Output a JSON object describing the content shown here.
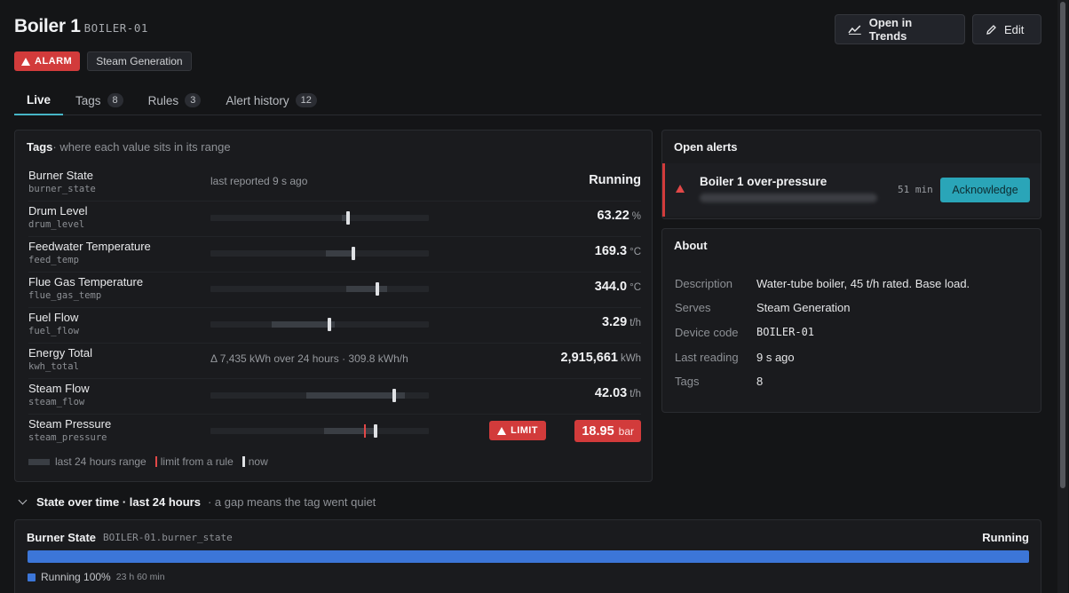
{
  "header": {
    "title": "Boiler 1",
    "code": "BOILER-01",
    "alarm": "ALARM",
    "area": "Steam Generation"
  },
  "actions": {
    "trends": "Open in Trends",
    "edit": "Edit"
  },
  "tabs": [
    {
      "label": "Live",
      "count": null
    },
    {
      "label": "Tags",
      "count": "8"
    },
    {
      "label": "Rules",
      "count": "3"
    },
    {
      "label": "Alert history",
      "count": "12"
    }
  ],
  "tags_panel": {
    "title": "Tags",
    "subtitle": "· where each value sits in its range",
    "rows": [
      {
        "name": "Burner State",
        "key": "burner_state",
        "note": "last reported 9 s ago",
        "value": "Running",
        "unit": ""
      },
      {
        "name": "Drum Level",
        "key": "drum_level",
        "value": "63.22",
        "unit": "%",
        "range": [
          0.6,
          0.64
        ],
        "now": 0.63
      },
      {
        "name": "Feedwater Temperature",
        "key": "feed_temp",
        "value": "169.3",
        "unit": "°C",
        "range": [
          0.53,
          0.66
        ],
        "now": 0.655
      },
      {
        "name": "Flue Gas Temperature",
        "key": "flue_gas_temp",
        "value": "344.0",
        "unit": "°C",
        "range": [
          0.62,
          0.81
        ],
        "now": 0.765
      },
      {
        "name": "Fuel Flow",
        "key": "fuel_flow",
        "value": "3.29",
        "unit": "t/h",
        "range": [
          0.28,
          0.57
        ],
        "now": 0.545
      },
      {
        "name": "Energy Total",
        "key": "kwh_total",
        "note": "Δ 7,435 kWh over 24 hours · 309.8 kWh/h",
        "value": "2,915,661",
        "unit": "kWh"
      },
      {
        "name": "Steam Flow",
        "key": "steam_flow",
        "value": "42.03",
        "unit": "t/h",
        "range": [
          0.44,
          0.89
        ],
        "now": 0.84
      },
      {
        "name": "Steam Pressure",
        "key": "steam_pressure",
        "value": "18.95",
        "unit": "bar",
        "range": [
          0.52,
          0.76
        ],
        "now": 0.755,
        "limit": 0.705,
        "limit_label": "LIMIT"
      }
    ],
    "legend": {
      "range": "last 24 hours range",
      "limit": "limit from a rule",
      "now": "now"
    }
  },
  "alerts": {
    "title": "Open alerts",
    "items": [
      {
        "title": "Boiler 1 over-pressure",
        "age": "51 min",
        "action": "Acknowledge"
      }
    ]
  },
  "about": {
    "title": "About",
    "rows": [
      {
        "k": "Description",
        "v": "Water-tube boiler, 45 t/h rated. Base load."
      },
      {
        "k": "Serves",
        "v": "Steam Generation"
      },
      {
        "k": "Device code",
        "v": "BOILER-01"
      },
      {
        "k": "Last reading",
        "v": "9 s ago"
      },
      {
        "k": "Tags",
        "v": "8"
      }
    ]
  },
  "state": {
    "heading": "State over time · last 24 hours",
    "hint": "· a gap means the tag went quiet",
    "name": "Burner State",
    "path": "BOILER-01.burner_state",
    "value": "Running",
    "legend_label": "Running 100%",
    "legend_duration": "23 h 60 min",
    "running_fraction": 1.0,
    "color": "#3c76d8"
  }
}
